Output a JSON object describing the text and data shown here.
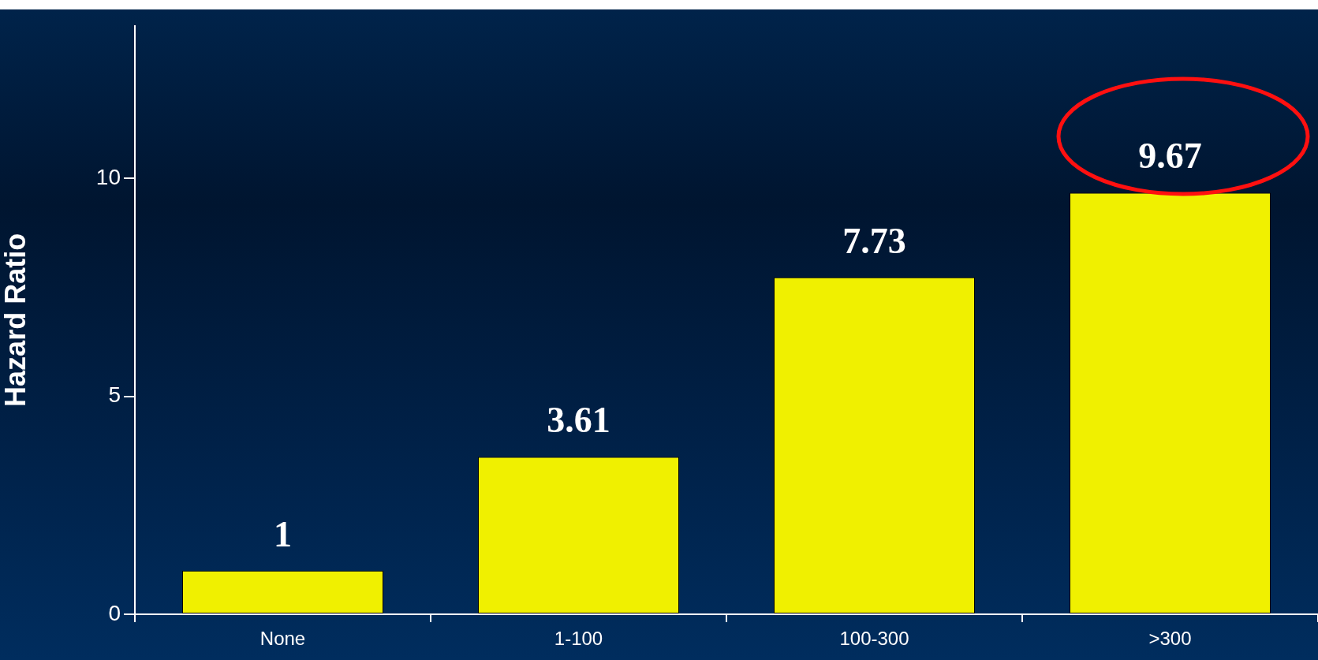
{
  "chart_data": {
    "type": "bar",
    "ylabel": "Hazard Ratio",
    "categories": [
      "None",
      "1-100",
      "100-300",
      ">300"
    ],
    "values": [
      1,
      3.61,
      7.73,
      9.67
    ],
    "color": "#f0f000",
    "ylim": [
      0,
      13.5
    ],
    "yticks": [
      0,
      5,
      10
    ],
    "grid": false,
    "legend": false,
    "data_labels": true
  }
}
